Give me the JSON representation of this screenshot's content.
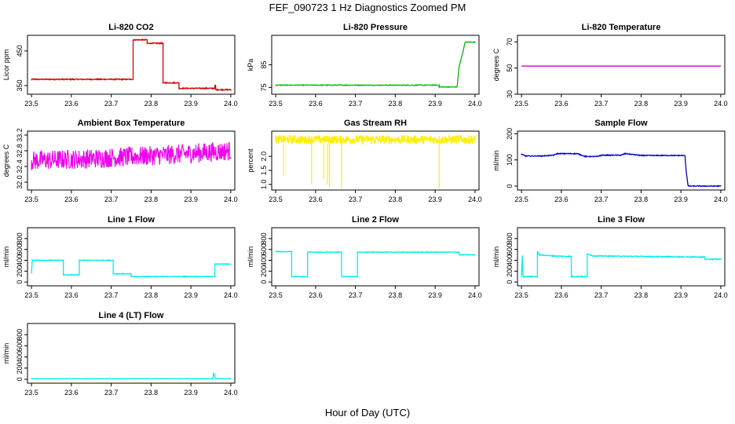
{
  "figure": {
    "title": "FEF_090723  1 Hz Diagnostics Zoomed PM",
    "xlabel": "Hour of Day (UTC)"
  },
  "chart_data": [
    {
      "type": "line",
      "title": "Li-820 CO2",
      "ylabel": "Licor ppm",
      "xlim": [
        23.49,
        24.01
      ],
      "ylim": [
        325,
        495
      ],
      "xticks": [
        23.5,
        23.6,
        23.7,
        23.8,
        23.9,
        24.0
      ],
      "xtick_labels": [
        "23.5",
        "23.6",
        "23.7",
        "23.8",
        "23.9",
        "24.0"
      ],
      "yticks": [
        350,
        450
      ],
      "ytick_labels": [
        "350",
        "450"
      ],
      "color": "#dd0000",
      "noise": 1.5,
      "series": [
        {
          "x": [
            23.5,
            23.755,
            23.755,
            23.79,
            23.79,
            23.83,
            23.83,
            23.87,
            23.87,
            23.96,
            23.96,
            23.962,
            23.962,
            24.0
          ],
          "y": [
            368,
            368,
            482,
            482,
            472,
            472,
            358,
            358,
            342,
            342,
            350,
            350,
            338,
            338
          ]
        }
      ]
    },
    {
      "type": "line",
      "title": "Li-820 Pressure",
      "ylabel": "kPa",
      "xlim": [
        23.49,
        24.01
      ],
      "ylim": [
        72,
        98
      ],
      "xticks": [
        23.5,
        23.6,
        23.7,
        23.8,
        23.9,
        24.0
      ],
      "xtick_labels": [
        "23.5",
        "23.6",
        "23.7",
        "23.8",
        "23.9",
        "24.0"
      ],
      "yticks": [
        75,
        85
      ],
      "ytick_labels": [
        "75",
        "85"
      ],
      "color": "#00bb00",
      "noise": 0.15,
      "series": [
        {
          "x": [
            23.5,
            23.91,
            23.91,
            23.955,
            23.96,
            23.97,
            23.975,
            24.0
          ],
          "y": [
            76,
            76,
            75.2,
            75.2,
            84,
            91,
            95,
            95
          ]
        }
      ]
    },
    {
      "type": "line",
      "title": "Li-820 Temperature",
      "ylabel": "degrees C",
      "xlim": [
        23.49,
        24.01
      ],
      "ylim": [
        30,
        75
      ],
      "xticks": [
        23.5,
        23.6,
        23.7,
        23.8,
        23.9,
        24.0
      ],
      "xtick_labels": [
        "23.5",
        "23.6",
        "23.7",
        "23.8",
        "23.9",
        "24.0"
      ],
      "yticks": [
        30,
        50,
        70
      ],
      "ytick_labels": [
        "30",
        "50",
        "70"
      ],
      "color": "#cc00cc",
      "noise": 0,
      "series": [
        {
          "x": [
            23.5,
            24.0
          ],
          "y": [
            51.5,
            51.5
          ]
        }
      ]
    },
    {
      "type": "line",
      "title": "Ambient Box Temperature",
      "ylabel": "degrees C",
      "xlim": [
        23.49,
        24.01
      ],
      "ylim": [
        31.8,
        33.3
      ],
      "xticks": [
        23.5,
        23.6,
        23.7,
        23.8,
        23.9,
        24.0
      ],
      "xtick_labels": [
        "23.5",
        "23.6",
        "23.7",
        "23.8",
        "23.9",
        "24.0"
      ],
      "yticks": [
        32.0,
        32.4,
        32.8,
        33.2
      ],
      "ytick_labels": [
        "32.0",
        "32.4",
        "32.8",
        "33.2"
      ],
      "color": "#ee00ee",
      "noise": 0.25,
      "series": [
        {
          "x": [
            23.5,
            23.65,
            23.75,
            23.85,
            24.0
          ],
          "y": [
            32.55,
            32.6,
            32.65,
            32.7,
            32.8
          ]
        }
      ]
    },
    {
      "type": "line",
      "title": "Gas Stream RH",
      "ylabel": "percent",
      "xlim": [
        23.49,
        24.01
      ],
      "ylim": [
        0.8,
        2.9
      ],
      "xticks": [
        23.5,
        23.6,
        23.7,
        23.8,
        23.9,
        24.0
      ],
      "xtick_labels": [
        "23.5",
        "23.6",
        "23.7",
        "23.8",
        "23.9",
        "24.0"
      ],
      "yticks": [
        1.0,
        1.5,
        2.0
      ],
      "ytick_labels": [
        "1.0",
        "1.5",
        "2.0"
      ],
      "color": "#ffee00",
      "noise": 0.15,
      "spikes": [
        [
          23.52,
          1.3
        ],
        [
          23.59,
          1.0
        ],
        [
          23.62,
          1.2
        ],
        [
          23.63,
          1.0
        ],
        [
          23.635,
          0.9
        ],
        [
          23.665,
          0.85
        ],
        [
          23.91,
          0.85
        ]
      ],
      "series": [
        {
          "x": [
            23.5,
            24.0
          ],
          "y": [
            2.6,
            2.6
          ]
        }
      ]
    },
    {
      "type": "line",
      "title": "Sample Flow",
      "ylabel": "ml/min",
      "xlim": [
        23.49,
        24.01
      ],
      "ylim": [
        -15,
        210
      ],
      "xticks": [
        23.5,
        23.6,
        23.7,
        23.8,
        23.9,
        24.0
      ],
      "xtick_labels": [
        "23.5",
        "23.6",
        "23.7",
        "23.8",
        "23.9",
        "24.0"
      ],
      "yticks": [
        0,
        100,
        200
      ],
      "ytick_labels": [
        "0",
        "100",
        "200"
      ],
      "color": "#0000cc",
      "noise": 1.5,
      "series": [
        {
          "x": [
            23.5,
            23.51,
            23.55,
            23.58,
            23.59,
            23.64,
            23.66,
            23.69,
            23.7,
            23.75,
            23.76,
            23.8,
            23.91,
            23.913,
            23.918,
            24.0
          ],
          "y": [
            122,
            115,
            115,
            118,
            124,
            124,
            113,
            113,
            118,
            118,
            124,
            117,
            117,
            60,
            0,
            0
          ]
        }
      ]
    },
    {
      "type": "line",
      "title": "Line 1 Flow",
      "ylabel": "ml/min",
      "xlim": [
        23.49,
        24.01
      ],
      "ylim": [
        -70,
        1000
      ],
      "xticks": [
        23.5,
        23.6,
        23.7,
        23.8,
        23.9,
        24.0
      ],
      "xtick_labels": [
        "23.5",
        "23.6",
        "23.7",
        "23.8",
        "23.9",
        "24.0"
      ],
      "yticks": [
        0,
        200,
        400,
        600,
        800
      ],
      "ytick_labels": [
        "0",
        "200",
        "400",
        "600",
        "800"
      ],
      "color": "#00eeee",
      "noise": 6,
      "series": [
        {
          "x": [
            23.5,
            23.502,
            23.58,
            23.58,
            23.62,
            23.62,
            23.705,
            23.705,
            23.75,
            23.75,
            23.96,
            23.96,
            24.0
          ],
          "y": [
            160,
            400,
            400,
            130,
            130,
            400,
            400,
            150,
            150,
            100,
            100,
            330,
            330
          ]
        }
      ]
    },
    {
      "type": "line",
      "title": "Line 2 Flow",
      "ylabel": "ml/min",
      "xlim": [
        23.49,
        24.01
      ],
      "ylim": [
        -70,
        1000
      ],
      "xticks": [
        23.5,
        23.6,
        23.7,
        23.8,
        23.9,
        24.0
      ],
      "xtick_labels": [
        "23.5",
        "23.6",
        "23.7",
        "23.8",
        "23.9",
        "24.0"
      ],
      "yticks": [
        0,
        200,
        400,
        600,
        800
      ],
      "ytick_labels": [
        "0",
        "200",
        "400",
        "600",
        "800"
      ],
      "color": "#00eeee",
      "noise": 6,
      "series": [
        {
          "x": [
            23.5,
            23.54,
            23.54,
            23.58,
            23.58,
            23.665,
            23.665,
            23.705,
            23.705,
            23.96,
            23.96,
            24.0
          ],
          "y": [
            560,
            560,
            100,
            100,
            550,
            550,
            100,
            100,
            550,
            550,
            500,
            500
          ]
        }
      ]
    },
    {
      "type": "line",
      "title": "Line 3 Flow",
      "ylabel": "ml/min",
      "xlim": [
        23.49,
        24.01
      ],
      "ylim": [
        -70,
        1000
      ],
      "xticks": [
        23.5,
        23.6,
        23.7,
        23.8,
        23.9,
        24.0
      ],
      "xtick_labels": [
        "23.5",
        "23.6",
        "23.7",
        "23.8",
        "23.9",
        "24.0"
      ],
      "yticks": [
        0,
        200,
        400,
        600,
        800
      ],
      "ytick_labels": [
        "0",
        "200",
        "400",
        "600",
        "800"
      ],
      "color": "#00eeee",
      "noise": 8,
      "series": [
        {
          "x": [
            23.5,
            23.502,
            23.504,
            23.54,
            23.54,
            23.545,
            23.58,
            23.62,
            23.625,
            23.625,
            23.665,
            23.665,
            23.68,
            23.95,
            23.96,
            23.96,
            24.0
          ],
          "y": [
            100,
            480,
            100,
            100,
            560,
            500,
            480,
            470,
            470,
            100,
            100,
            520,
            480,
            460,
            460,
            420,
            420
          ]
        }
      ]
    },
    {
      "type": "line",
      "title": "Line 4 (LT) Flow",
      "ylabel": "ml/min",
      "xlim": [
        23.49,
        24.01
      ],
      "ylim": [
        -70,
        1000
      ],
      "xticks": [
        23.5,
        23.6,
        23.7,
        23.8,
        23.9,
        24.0
      ],
      "xtick_labels": [
        "23.5",
        "23.6",
        "23.7",
        "23.8",
        "23.9",
        "24.0"
      ],
      "yticks": [
        0,
        200,
        400,
        600,
        800
      ],
      "ytick_labels": [
        "0",
        "200",
        "400",
        "600",
        "800"
      ],
      "color": "#00eeee",
      "noise": 3,
      "series": [
        {
          "x": [
            23.5,
            23.955,
            23.957,
            23.96,
            23.962,
            24.0
          ],
          "y": [
            10,
            10,
            120,
            40,
            10,
            10
          ]
        }
      ]
    }
  ]
}
